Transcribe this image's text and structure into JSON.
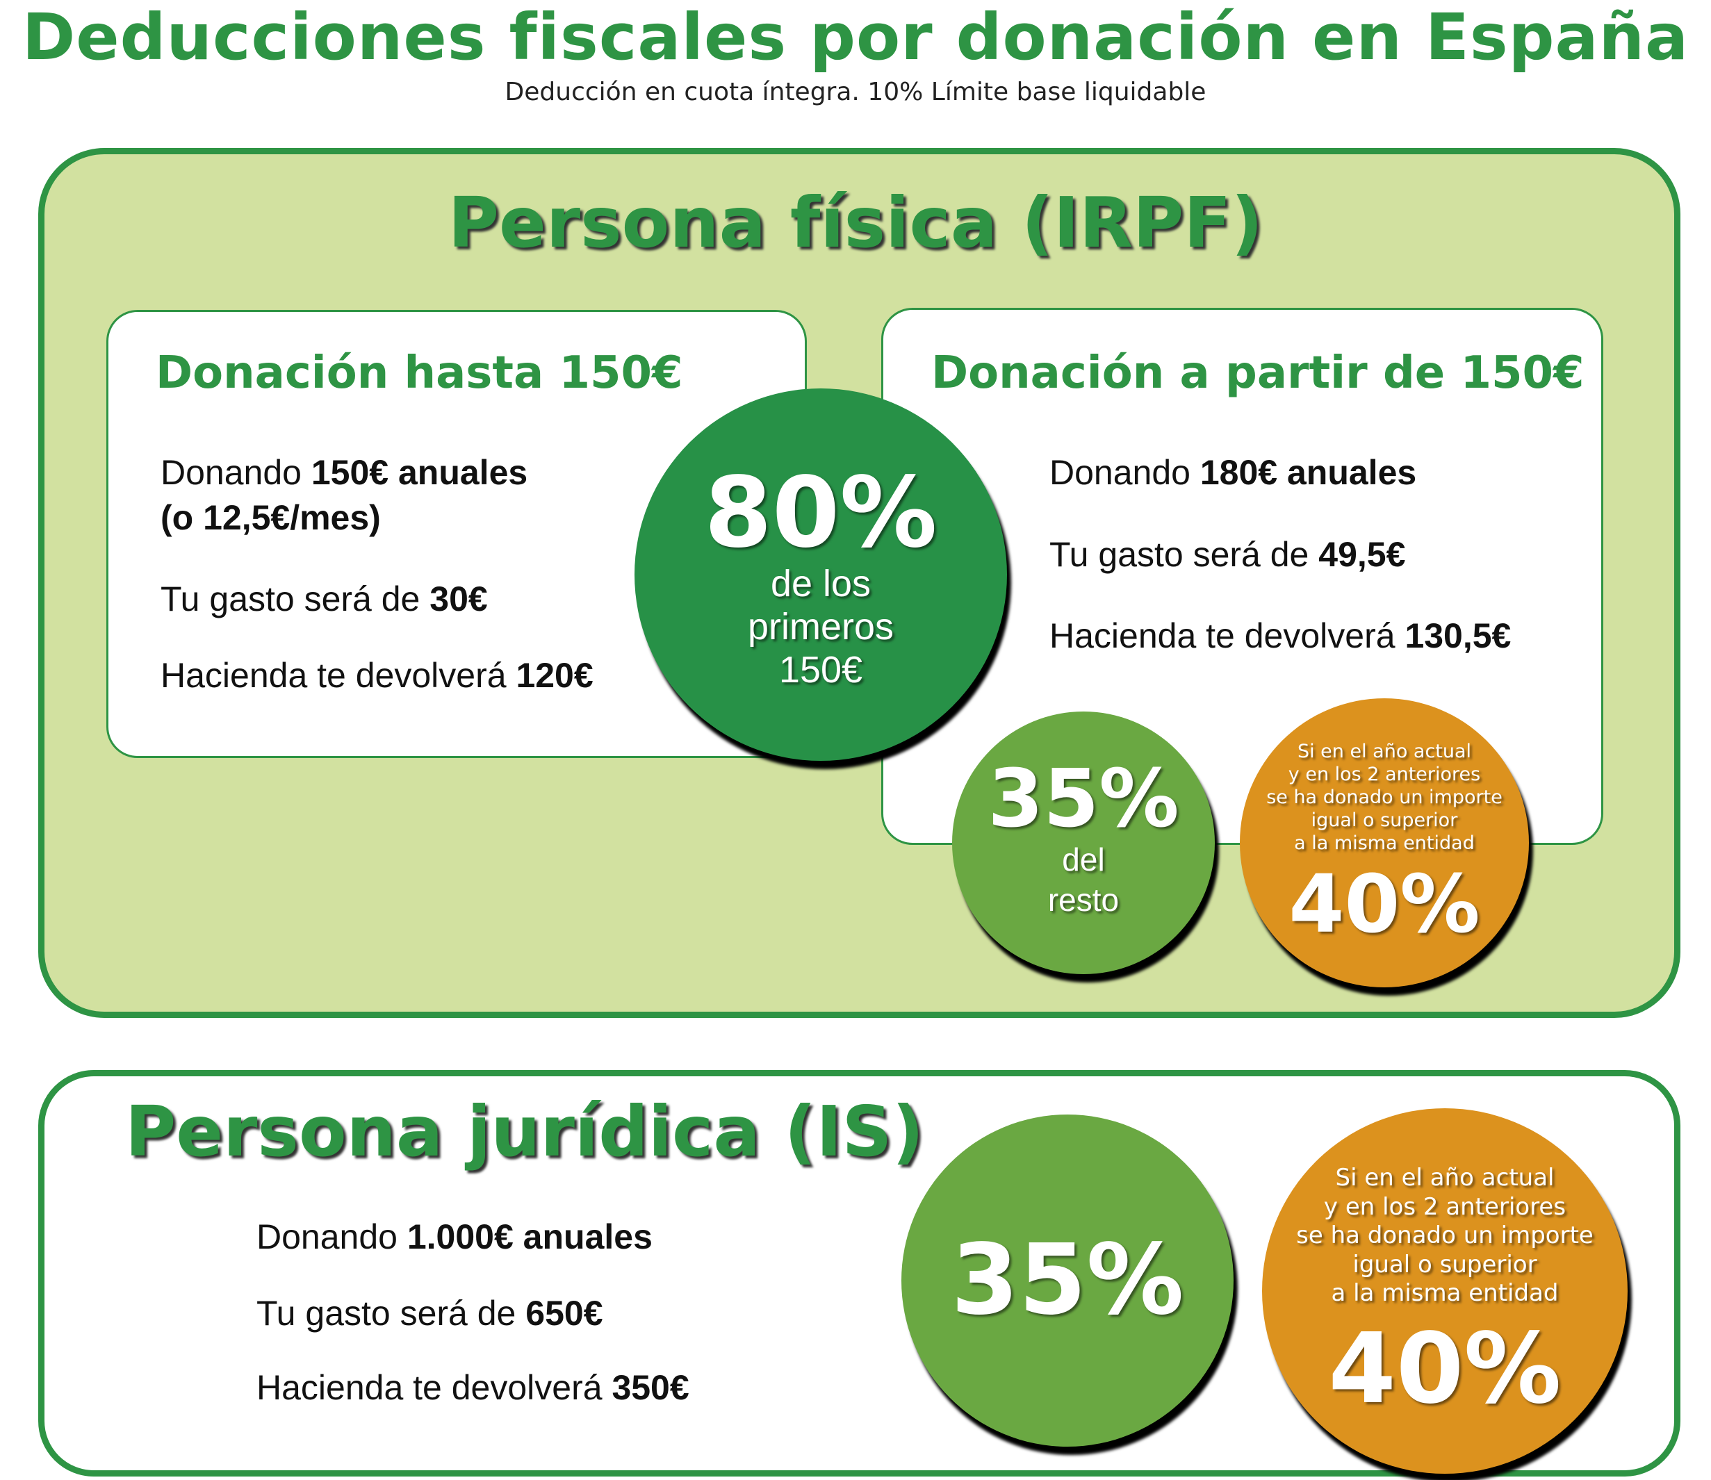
{
  "header": {
    "title": "Deducciones fiscales por donación en España",
    "subtitle": "Deducción en cuota íntegra. 10% Límite base liquidable"
  },
  "colors": {
    "dark_green": "#2e9444",
    "circle_green": "#279147",
    "light_green_circle": "#6aa842",
    "orange": "#dc921e",
    "panel_bg": "#d2e1a0"
  },
  "fisica": {
    "title": "Persona física (IRPF)",
    "card_low": {
      "title": "Donación hasta 150€",
      "l1_pre": "Donando ",
      "l1_bold": "150€ anuales",
      "l2_bold": "(o 12,5€/mes)",
      "l3_pre": "Tu gasto será de ",
      "l3_bold": "30€",
      "l4_pre": "Hacienda te devolverá ",
      "l4_bold": "120€"
    },
    "card_high": {
      "title": "Donación a partir de 150€",
      "l1_pre": "Donando ",
      "l1_bold": "180€ anuales",
      "l2_pre": "Tu gasto será de ",
      "l2_bold": "49,5€",
      "l3_pre": "Hacienda te devolverá ",
      "l3_bold": "130,5€"
    },
    "circle_80": {
      "pct": "80%",
      "l1": "de los",
      "l2": "primeros",
      "l3": "150€"
    },
    "circle_35": {
      "pct": "35%",
      "l1": "del",
      "l2": "resto"
    },
    "circle_40": {
      "c1": "Si en el año actual",
      "c2": "y en los 2 anteriores",
      "c3": "se ha donado un importe",
      "c4": "igual o superior",
      "c5": "a la misma entidad",
      "pct": "40%"
    }
  },
  "juridica": {
    "title": "Persona jurídica (IS)",
    "l1_pre": "Donando ",
    "l1_bold": "1.000€ anuales",
    "l2_pre": "Tu gasto será de ",
    "l2_bold": "650€",
    "l3_pre": "Hacienda te devolverá ",
    "l3_bold": "350€",
    "circle_35": {
      "pct": "35%"
    },
    "circle_40": {
      "c1": "Si en el año actual",
      "c2": "y en los 2 anteriores",
      "c3": "se ha donado un importe",
      "c4": "igual o superior",
      "c5": "a la misma entidad",
      "pct": "40%"
    }
  }
}
